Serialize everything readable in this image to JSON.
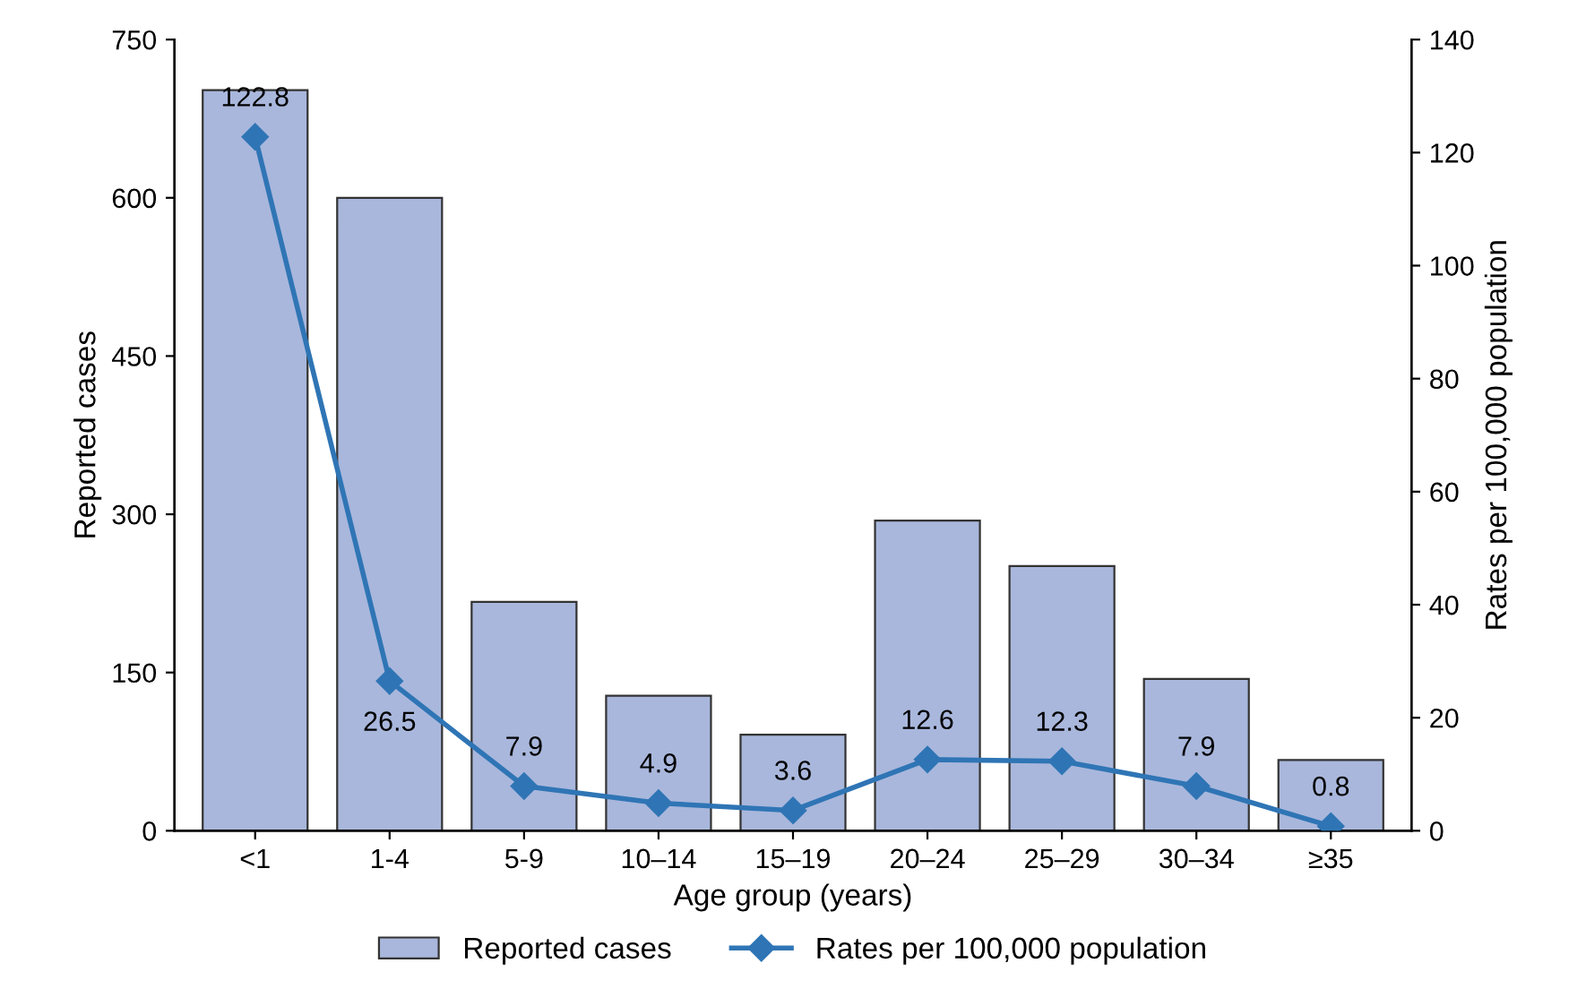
{
  "chart_data": {
    "type": "bar",
    "xlabel": "Age group (years)",
    "ylabel": "Reported cases",
    "y2label": "Rates per 100,000 population",
    "categories": [
      "<1",
      "1-4",
      "5-9",
      "10–14",
      "15–19",
      "20–24",
      "25–29",
      "30–34",
      "≥35"
    ],
    "series": [
      {
        "name": "Reported cases",
        "color": "#a9b7dc",
        "values": [
          702,
          600,
          217,
          128,
          91,
          294,
          251,
          144,
          67
        ]
      },
      {
        "name": "Rates per 100,000 population",
        "type": "line",
        "axis": "y2",
        "color": "#2f75b5",
        "marker": "diamond",
        "values": [
          122.8,
          26.5,
          7.9,
          4.9,
          3.6,
          12.6,
          12.3,
          7.9,
          0.8
        ],
        "value_labels": [
          "122.8",
          "26.5",
          "7.9",
          "4.9",
          "3.6",
          "12.6",
          "12.3",
          "7.9",
          "0.8"
        ]
      }
    ],
    "ylim": [
      0,
      750
    ],
    "yticks": [
      0,
      150,
      300,
      450,
      600,
      750
    ],
    "y2lim": [
      0,
      140
    ],
    "y2ticks": [
      0,
      20,
      40,
      60,
      80,
      100,
      120,
      140
    ],
    "grid": false,
    "legend": "bottom"
  }
}
